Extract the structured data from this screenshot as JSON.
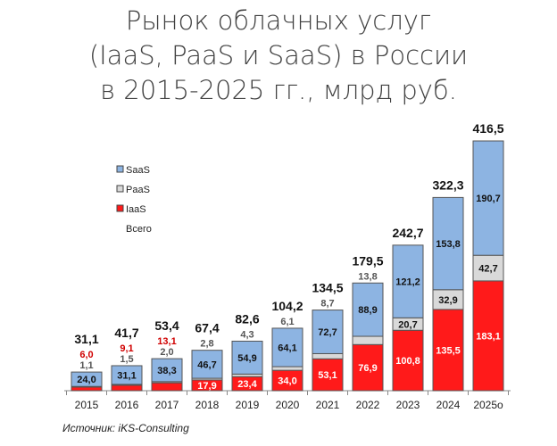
{
  "chart_data": {
    "type": "bar",
    "stacked": true,
    "title": [
      "Рынок облачных услуг",
      "(IaaS, PaaS и SaaS) в России",
      "в 2015-2025 гг., млрд руб."
    ],
    "categories": [
      "2015",
      "2016",
      "2017",
      "2018",
      "2019",
      "2020",
      "2021",
      "2022",
      "2023",
      "2024",
      "2025о"
    ],
    "series": [
      {
        "name": "IaaS",
        "color": "#ff1a1a",
        "values": [
          6.0,
          9.1,
          13.1,
          17.9,
          23.4,
          34.0,
          53.1,
          76.9,
          100.8,
          135.5,
          183.1
        ],
        "labels": [
          "6,0",
          "9,1",
          "13,1",
          "17,9",
          "23,4",
          "34,0",
          "53,1",
          "76,9",
          "100,8",
          "135,5",
          "183,1"
        ]
      },
      {
        "name": "PaaS",
        "color": "#d9d9d9",
        "values": [
          1.1,
          1.5,
          2.0,
          2.8,
          4.3,
          6.1,
          8.7,
          13.8,
          20.7,
          32.9,
          42.7
        ],
        "labels": [
          "1,1",
          "1,5",
          "2,0",
          "2,8",
          "4,3",
          "6,1",
          "8,7",
          "13,8",
          "20,7",
          "32,9",
          "42,7"
        ]
      },
      {
        "name": "SaaS",
        "color": "#8db4e2",
        "values": [
          24.0,
          31.1,
          38.3,
          46.7,
          54.9,
          64.1,
          72.7,
          88.9,
          121.2,
          153.8,
          190.7
        ],
        "labels": [
          "24,0",
          "31,1",
          "38,3",
          "46,7",
          "54,9",
          "64,1",
          "72,7",
          "88,9",
          "121,2",
          "153,8",
          "190,7"
        ]
      }
    ],
    "totals": {
      "name": "Всего",
      "values": [
        31.1,
        41.7,
        53.4,
        67.4,
        82.6,
        104.2,
        134.5,
        179.5,
        242.7,
        322.3,
        416.5
      ],
      "labels": [
        "31,1",
        "41,7",
        "53,4",
        "67,4",
        "82,6",
        "104,2",
        "134,5",
        "179,5",
        "242,7",
        "322,3",
        "416,5"
      ]
    },
    "legend_order": [
      "SaaS",
      "PaaS",
      "IaaS",
      "Всего"
    ],
    "legend_position": "top-left",
    "ylim": [
      0,
      420
    ],
    "grid": false
  },
  "source": "Источник: iKS-Consulting"
}
